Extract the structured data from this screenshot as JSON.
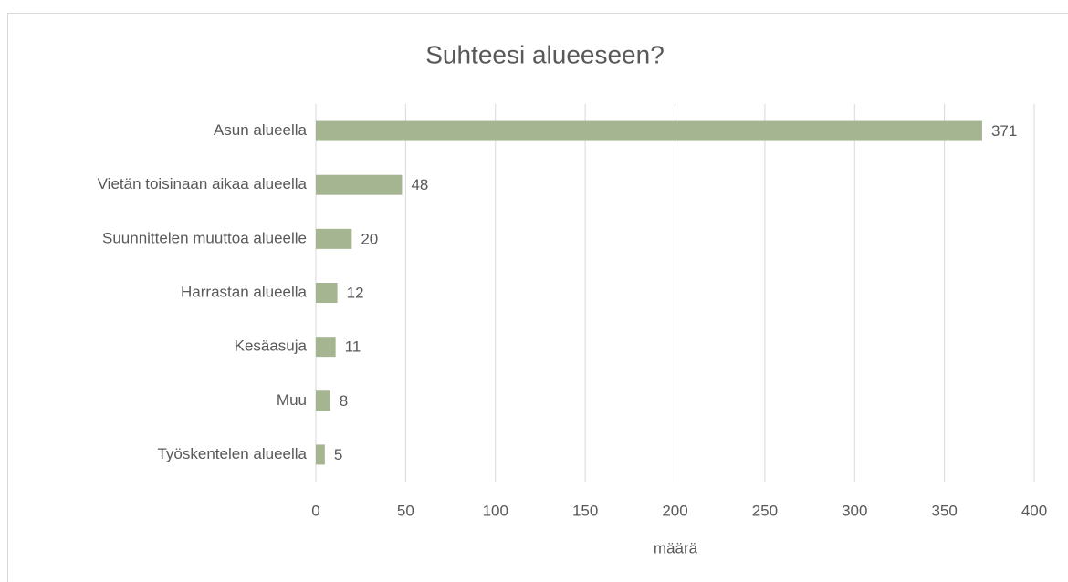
{
  "chart_data": {
    "type": "bar",
    "orientation": "horizontal",
    "title": "Suhteesi alueeseen?",
    "x_label": "määrä",
    "categories": [
      "Asun alueella",
      "Vietän toisinaan aikaa alueella",
      "Suunnittelen muuttoa alueelle",
      "Harrastan alueella",
      "Kesäasuja",
      "Muu",
      "Työskentelen alueella"
    ],
    "values": [
      371,
      48,
      20,
      12,
      11,
      8,
      5
    ],
    "color": "#a5b592",
    "xlim": [
      0,
      400
    ],
    "xticks": [
      0,
      50,
      100,
      150,
      200,
      250,
      300,
      350,
      400
    ],
    "grid": true
  }
}
